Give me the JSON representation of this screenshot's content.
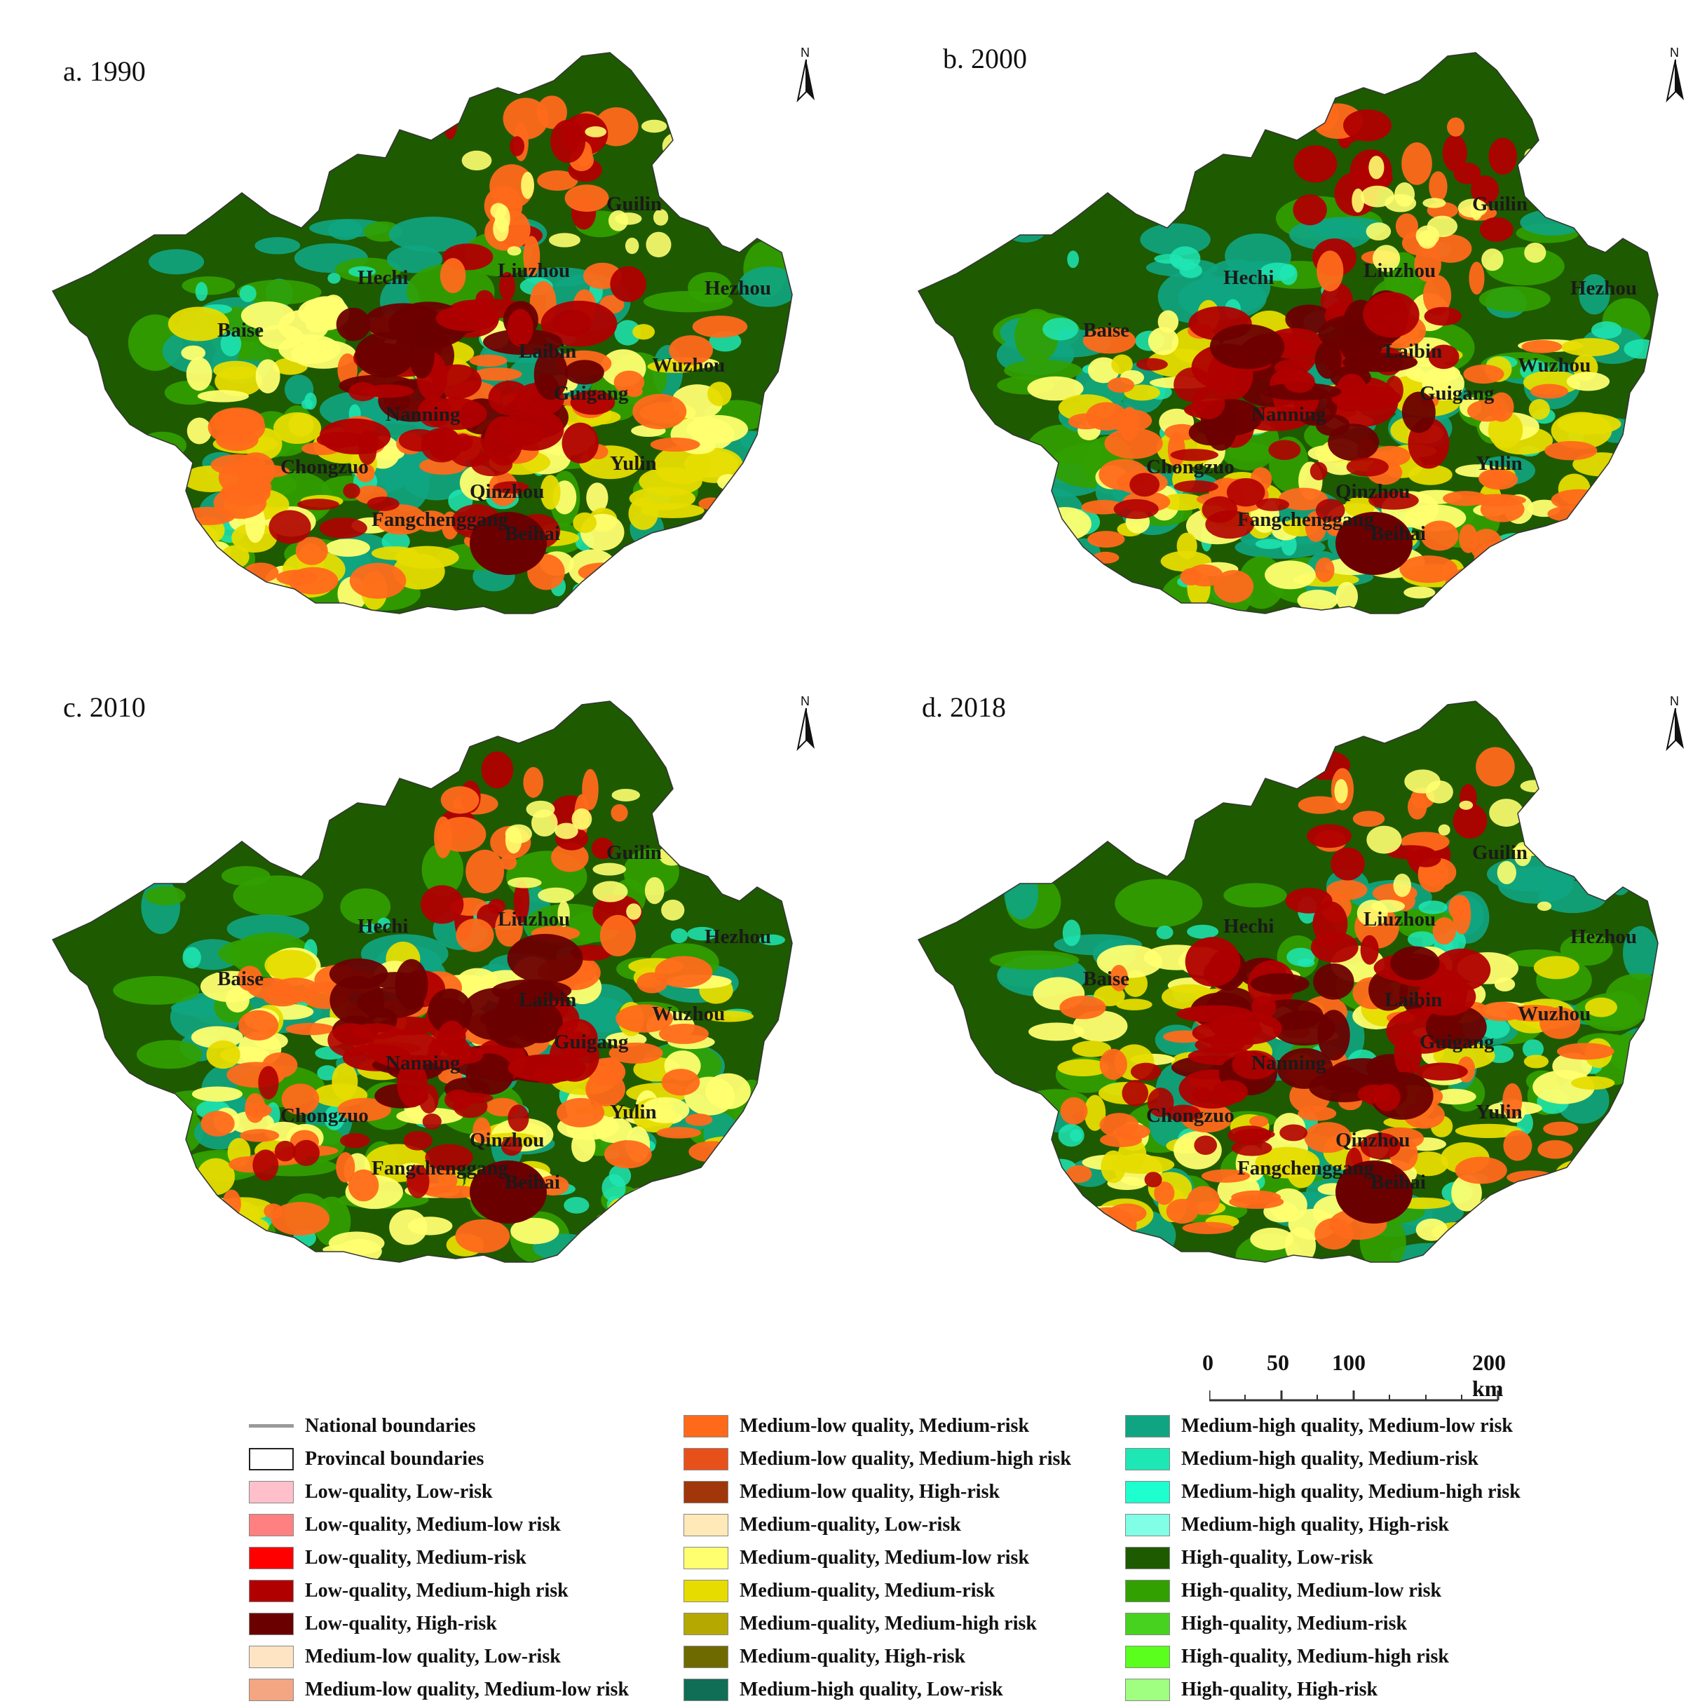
{
  "panels": [
    {
      "id": "a",
      "title": "a. 1990"
    },
    {
      "id": "b",
      "title": "b. 2000"
    },
    {
      "id": "c",
      "title": "c. 2010"
    },
    {
      "id": "d",
      "title": "d. 2018"
    }
  ],
  "north_label": "N",
  "cities": [
    "Guilin",
    "Hechi",
    "Liuzhou",
    "Hezhou",
    "Baise",
    "Laibin",
    "Wuzhou",
    "Guigang",
    "Nanning",
    "Chongzuo",
    "Yulin",
    "Qinzhou",
    "Fangchenggang",
    "Beihai"
  ],
  "scale_bar": {
    "labels": [
      "0",
      "50",
      "100",
      "200 km"
    ]
  },
  "legend": {
    "col1": [
      {
        "label": "National boundaries",
        "kind": "line",
        "color": "#9a9a9a"
      },
      {
        "label": "Provincal boundaries",
        "kind": "box",
        "color": "#ffffff"
      },
      {
        "label": "Low-quality, Low-risk",
        "kind": "fill",
        "color": "#ffc0cb"
      },
      {
        "label": "Low-quality, Medium-low risk",
        "kind": "fill",
        "color": "#ff8080"
      },
      {
        "label": "Low-quality, Medium-risk",
        "kind": "fill",
        "color": "#ff0000"
      },
      {
        "label": "Low-quality, Medium-high risk",
        "kind": "fill",
        "color": "#b00000"
      },
      {
        "label": "Low-quality, High-risk",
        "kind": "fill",
        "color": "#6b0000"
      },
      {
        "label": "Medium-low quality, Low-risk",
        "kind": "fill",
        "color": "#ffe4c4"
      },
      {
        "label": "Medium-low quality, Medium-low risk",
        "kind": "fill",
        "color": "#f4a582"
      }
    ],
    "col2": [
      {
        "label": "Medium-low quality, Medium-risk",
        "kind": "fill",
        "color": "#ff6a1a"
      },
      {
        "label": "Medium-low quality, Medium-high risk",
        "kind": "fill",
        "color": "#e8501a"
      },
      {
        "label": "Medium-low quality, High-risk",
        "kind": "fill",
        "color": "#a0360a"
      },
      {
        "label": "Medium-quality, Low-risk",
        "kind": "fill",
        "color": "#ffe9b8"
      },
      {
        "label": "Medium-quality, Medium-low risk",
        "kind": "fill",
        "color": "#ffff70"
      },
      {
        "label": "Medium-quality, Medium-risk",
        "kind": "fill",
        "color": "#e6dc00"
      },
      {
        "label": "Medium-quality, Medium-high risk",
        "kind": "fill",
        "color": "#b5a800"
      },
      {
        "label": "Medium-quality, High-risk",
        "kind": "fill",
        "color": "#6e6a00"
      },
      {
        "label": "Medium-high quality, Low-risk",
        "kind": "fill",
        "color": "#0f6e55"
      }
    ],
    "col3": [
      {
        "label": "Medium-high quality, Medium-low risk",
        "kind": "fill",
        "color": "#10a582"
      },
      {
        "label": "Medium-high quality, Medium-risk",
        "kind": "fill",
        "color": "#1ee6b4"
      },
      {
        "label": "Medium-high quality, Medium-high risk",
        "kind": "fill",
        "color": "#1effd0"
      },
      {
        "label": "Medium-high quality, High-risk",
        "kind": "fill",
        "color": "#80ffe6"
      },
      {
        "label": "High-quality, Low-risk",
        "kind": "fill",
        "color": "#1e5a00"
      },
      {
        "label": "High-quality, Medium-low risk",
        "kind": "fill",
        "color": "#32a000"
      },
      {
        "label": "High-quality, Medium-risk",
        "kind": "fill",
        "color": "#46d21e"
      },
      {
        "label": "High-quality, Medium-high risk",
        "kind": "fill",
        "color": "#5aff1e"
      },
      {
        "label": "High-quality, High-risk",
        "kind": "fill",
        "color": "#a0ff80"
      }
    ]
  }
}
